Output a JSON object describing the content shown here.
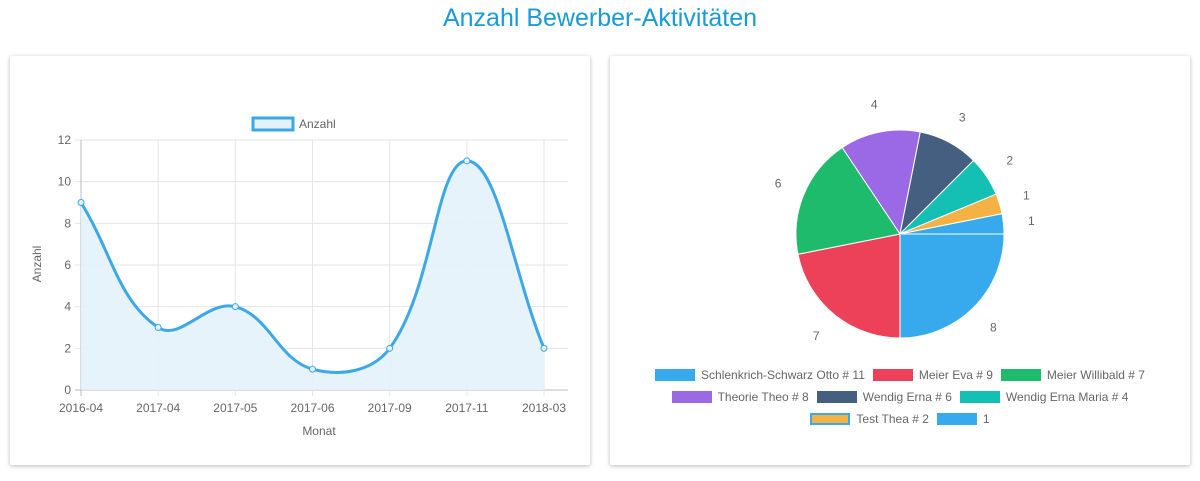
{
  "page": {
    "title": "Anzahl Bewerber-Aktivitäten"
  },
  "chart_data": [
    {
      "type": "line",
      "series_name": "Anzahl",
      "categories": [
        "2016-04",
        "2017-04",
        "2017-05",
        "2017-06",
        "2017-09",
        "2017-11",
        "2018-03"
      ],
      "values": [
        9,
        3,
        4,
        1,
        2,
        11,
        2
      ],
      "xlabel": "Monat",
      "ylabel": "Anzahl",
      "ylim": [
        0,
        12
      ],
      "yticks": [
        "0",
        "2",
        "4",
        "6",
        "8",
        "10",
        "12"
      ],
      "grid": true,
      "legend": "top",
      "color": "#3da8e6",
      "fill": "#e4f2fb"
    },
    {
      "type": "pie",
      "labels": [
        "Schlenkrich-Schwarz Otto # 11",
        "Meier Eva # 9",
        "Meier Willibald # 7",
        "Theorie Theo # 8",
        "Wendig Erna # 6",
        "Wendig Erna Maria # 4",
        "Test Thea # 2",
        "1"
      ],
      "values": [
        8,
        7,
        6,
        4,
        3,
        2,
        1,
        1
      ],
      "colors": [
        "#36aaed",
        "#ed4159",
        "#1fbb6d",
        "#9b69e6",
        "#455f80",
        "#14bfb3",
        "#f5b143",
        "#36aaed"
      ],
      "legend": "bottom"
    }
  ]
}
